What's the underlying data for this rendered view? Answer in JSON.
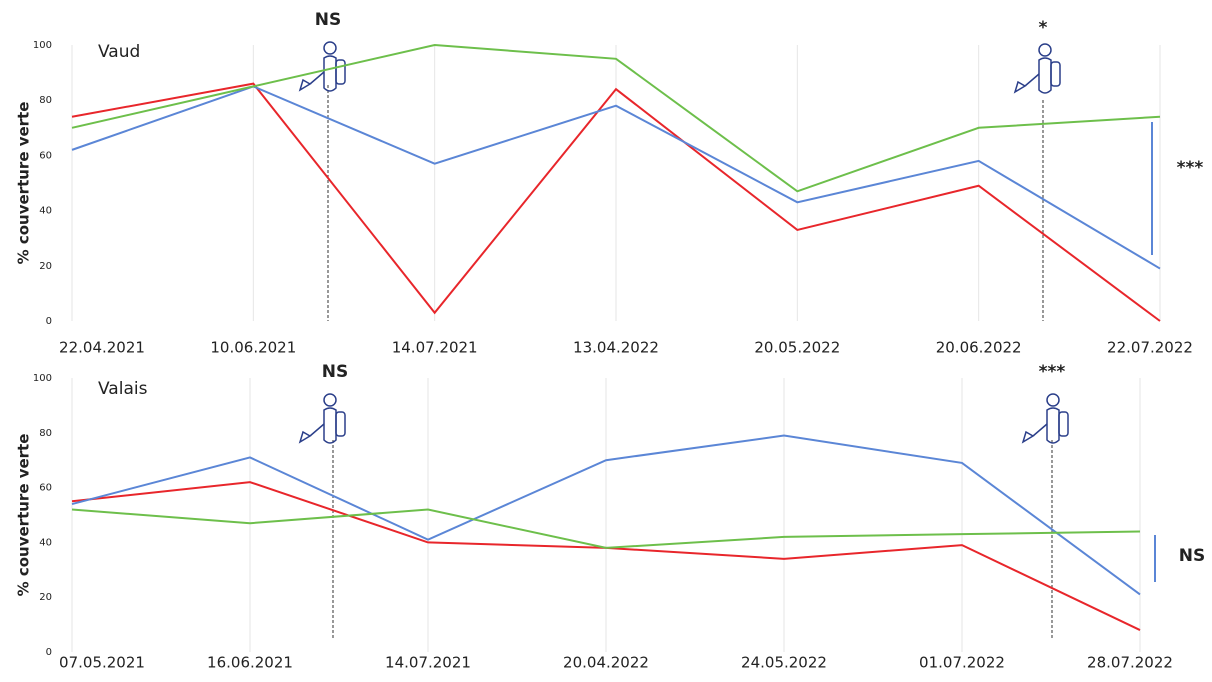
{
  "chart_data": [
    {
      "type": "line",
      "title": "Vaud",
      "y_label": "% couverture verte",
      "categories": [
        "22.04.2021",
        "10.06.2021",
        "14.07.2021",
        "13.04.2022",
        "20.05.2022",
        "20.06.2022",
        "22.07.2022"
      ],
      "series": [
        {
          "color": "#e8262b",
          "values": [
            74,
            86,
            3,
            84,
            33,
            49,
            0
          ]
        },
        {
          "color": "#5b86d6",
          "values": [
            62,
            85,
            57,
            78,
            43,
            58,
            19
          ]
        },
        {
          "color": "#6dbf4b",
          "values": [
            70,
            85,
            100,
            95,
            47,
            70,
            74
          ]
        }
      ],
      "ylim": [
        0,
        100
      ],
      "yticks": [
        0,
        20,
        40,
        60,
        80,
        100
      ],
      "grid": "x",
      "annotations": [
        "NS",
        "*",
        "***"
      ]
    },
    {
      "type": "line",
      "title": "Valais",
      "y_label": "% couverture verte",
      "categories": [
        "07.05.2021",
        "16.06.2021",
        "14.07.2021",
        "20.04.2022",
        "24.05.2022",
        "01.07.2022",
        "28.07.2022"
      ],
      "series": [
        {
          "color": "#e8262b",
          "values": [
            55,
            62,
            40,
            38,
            34,
            39,
            8
          ]
        },
        {
          "color": "#5b86d6",
          "values": [
            54,
            71,
            41,
            70,
            79,
            69,
            21
          ]
        },
        {
          "color": "#6dbf4b",
          "values": [
            52,
            47,
            52,
            38,
            42,
            43,
            44
          ]
        }
      ],
      "ylim": [
        0,
        100
      ],
      "yticks": [
        0,
        20,
        40,
        60,
        80,
        100
      ],
      "grid": "x",
      "annotations": [
        "NS",
        "***",
        "NS"
      ]
    }
  ]
}
